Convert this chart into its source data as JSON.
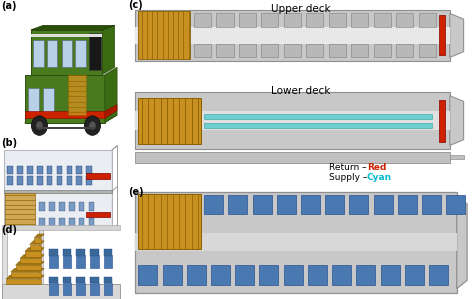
{
  "bg_color": "#ffffff",
  "panel_labels": [
    "(a)",
    "(b)",
    "(c)",
    "(d)",
    "(e)"
  ],
  "upper_deck_label": "Upper deck",
  "lower_deck_label": "Lower deck",
  "return_label": "Return – ",
  "supply_label": "Supply – ",
  "return_color": "#cc2200",
  "supply_color": "#00bbcc",
  "bus_green": "#4a7a1e",
  "bus_dark_green": "#2d5010",
  "bus_red": "#cc2200",
  "bus_gold": "#c89020",
  "bus_dark_gold": "#8b6000",
  "seat_blue": "#4a78b0",
  "seat_dark_blue": "#2a5090",
  "deck_light": "#c8c8c8",
  "deck_mid": "#b8b8b8",
  "deck_border": "#909090",
  "deck_white": "#e8e8e8",
  "red_duct": "#cc2200",
  "cyan_duct": "#40c8c8",
  "glass_blue": "#b8d0e8",
  "bus_black": "#1a1a1a",
  "bus_white": "#f0f0f0",
  "stair_gold": "#c89020",
  "stair_dark": "#8b6000",
  "body_silver": "#d0d4d8",
  "body_silver2": "#c0c4c8",
  "shadow": "#a0a0a0"
}
